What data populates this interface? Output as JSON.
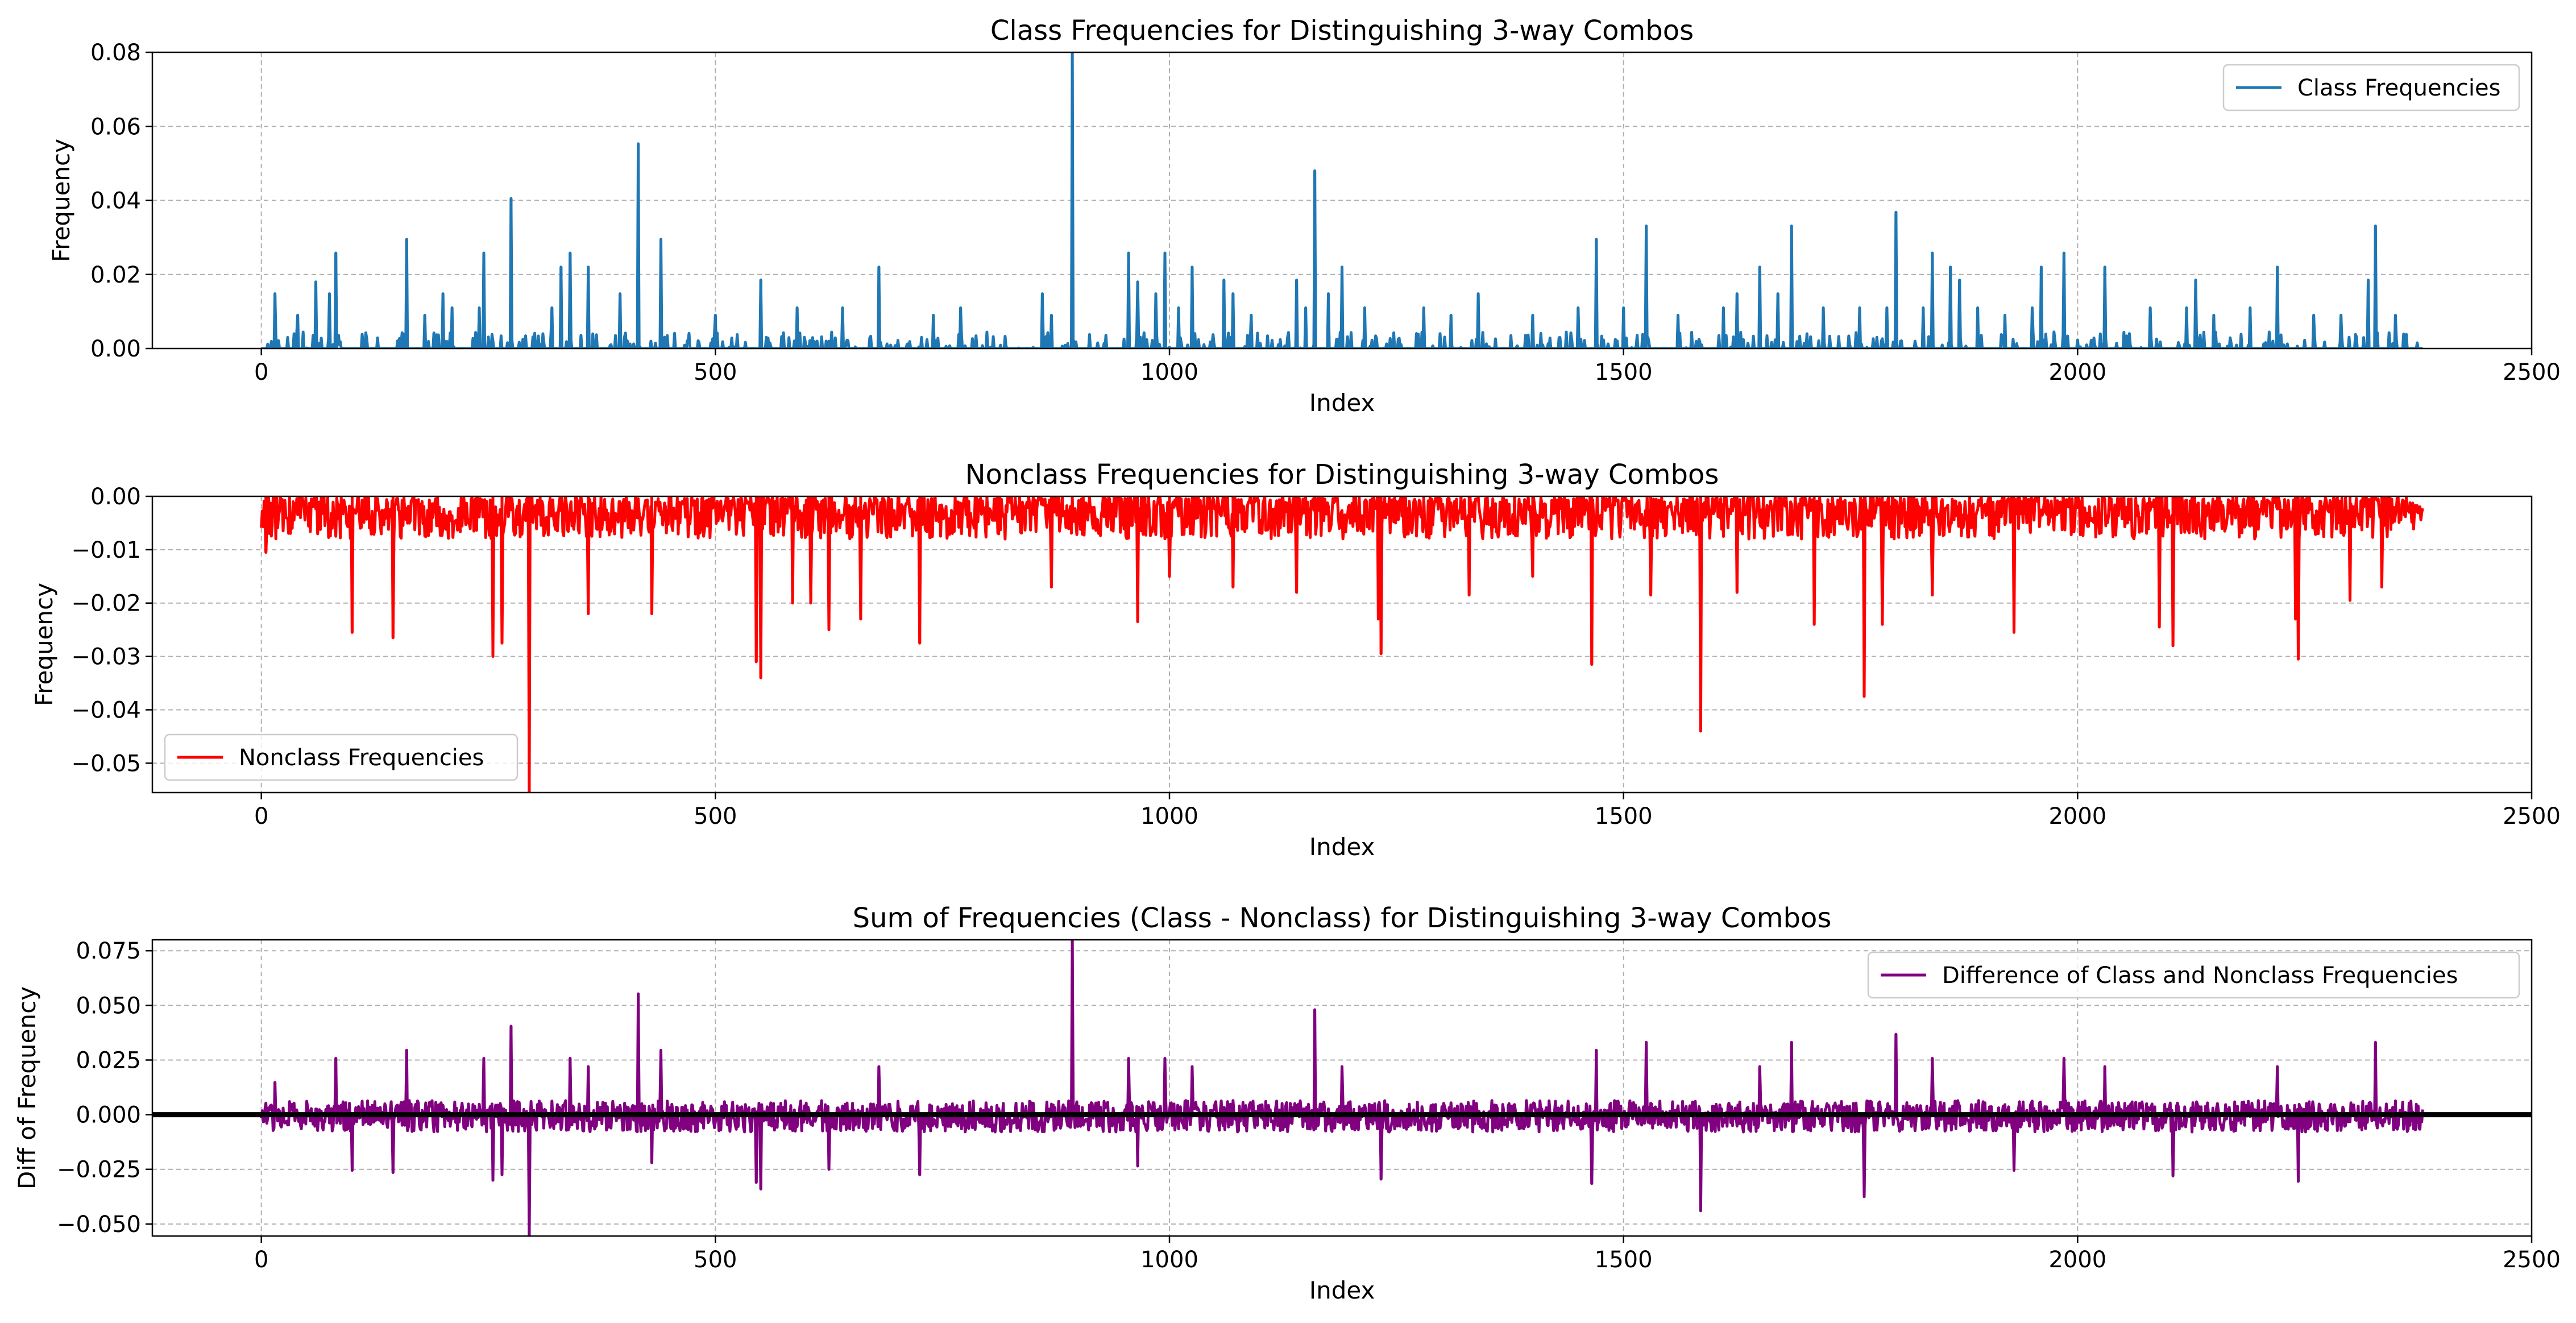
{
  "chart_data": [
    {
      "type": "line",
      "title": "Class Frequencies for Distinguishing 3-way Combos",
      "xlabel": "Index",
      "ylabel": "Frequency",
      "xlim": [
        -120,
        2500
      ],
      "ylim": [
        0,
        0.08
      ],
      "xticks": [
        0,
        500,
        1000,
        1500,
        2000,
        2500
      ],
      "xtick_labels": [
        "0",
        "500",
        "1000",
        "1500",
        "2000",
        "2500"
      ],
      "yticks": [
        0,
        0.02,
        0.04,
        0.06,
        0.08
      ],
      "ytick_labels": [
        "0.00",
        "0.02",
        "0.04",
        "0.06",
        "0.08"
      ],
      "grid": true,
      "legend_position": "upper-right",
      "series": [
        {
          "name": "Class Frequencies",
          "color": "#1f77b4",
          "x_start": 0,
          "x_end": 2380,
          "sign": 1,
          "noise_max": 0.0045,
          "noise_density": 0.4,
          "spikes": [
            [
              15,
              0.0148
            ],
            [
              40,
              0.009
            ],
            [
              60,
              0.018
            ],
            [
              75,
              0.0148
            ],
            [
              82,
              0.0258
            ],
            [
              160,
              0.0295
            ],
            [
              180,
              0.009
            ],
            [
              200,
              0.0148
            ],
            [
              210,
              0.011
            ],
            [
              240,
              0.011
            ],
            [
              245,
              0.0258
            ],
            [
              275,
              0.0405
            ],
            [
              320,
              0.011
            ],
            [
              330,
              0.022
            ],
            [
              340,
              0.0258
            ],
            [
              360,
              0.022
            ],
            [
              395,
              0.0148
            ],
            [
              415,
              0.0553
            ],
            [
              440,
              0.0295
            ],
            [
              500,
              0.009
            ],
            [
              550,
              0.0185
            ],
            [
              590,
              0.011
            ],
            [
              640,
              0.011
            ],
            [
              680,
              0.022
            ],
            [
              740,
              0.009
            ],
            [
              770,
              0.011
            ],
            [
              860,
              0.0148
            ],
            [
              870,
              0.009
            ],
            [
              893,
              0.08
            ],
            [
              955,
              0.0258
            ],
            [
              965,
              0.018
            ],
            [
              985,
              0.0148
            ],
            [
              995,
              0.0258
            ],
            [
              1010,
              0.011
            ],
            [
              1025,
              0.022
            ],
            [
              1060,
              0.0185
            ],
            [
              1070,
              0.0148
            ],
            [
              1090,
              0.009
            ],
            [
              1140,
              0.0185
            ],
            [
              1150,
              0.011
            ],
            [
              1160,
              0.048
            ],
            [
              1175,
              0.0148
            ],
            [
              1190,
              0.022
            ],
            [
              1215,
              0.011
            ],
            [
              1280,
              0.011
            ],
            [
              1310,
              0.009
            ],
            [
              1340,
              0.0148
            ],
            [
              1400,
              0.009
            ],
            [
              1450,
              0.011
            ],
            [
              1470,
              0.0295
            ],
            [
              1500,
              0.011
            ],
            [
              1525,
              0.0331
            ],
            [
              1560,
              0.009
            ],
            [
              1610,
              0.011
            ],
            [
              1625,
              0.0148
            ],
            [
              1650,
              0.022
            ],
            [
              1670,
              0.0148
            ],
            [
              1685,
              0.0331
            ],
            [
              1720,
              0.011
            ],
            [
              1760,
              0.011
            ],
            [
              1790,
              0.011
            ],
            [
              1800,
              0.0368
            ],
            [
              1830,
              0.011
            ],
            [
              1840,
              0.0258
            ],
            [
              1860,
              0.022
            ],
            [
              1870,
              0.0185
            ],
            [
              1890,
              0.011
            ],
            [
              1920,
              0.009
            ],
            [
              1950,
              0.011
            ],
            [
              1960,
              0.022
            ],
            [
              1985,
              0.0258
            ],
            [
              2030,
              0.022
            ],
            [
              2080,
              0.011
            ],
            [
              2120,
              0.011
            ],
            [
              2130,
              0.0185
            ],
            [
              2150,
              0.009
            ],
            [
              2190,
              0.011
            ],
            [
              2220,
              0.022
            ],
            [
              2260,
              0.009
            ],
            [
              2290,
              0.009
            ],
            [
              2320,
              0.0185
            ],
            [
              2328,
              0.0331
            ],
            [
              2350,
              0.009
            ]
          ]
        }
      ]
    },
    {
      "type": "line",
      "title": "Nonclass Frequencies for Distinguishing 3-way Combos",
      "xlabel": "Index",
      "ylabel": "Frequency",
      "xlim": [
        -120,
        2500
      ],
      "ylim": [
        -0.0555,
        0
      ],
      "xticks": [
        0,
        500,
        1000,
        1500,
        2000,
        2500
      ],
      "xtick_labels": [
        "0",
        "500",
        "1000",
        "1500",
        "2000",
        "2500"
      ],
      "yticks": [
        -0.05,
        -0.04,
        -0.03,
        -0.02,
        -0.01,
        0
      ],
      "ytick_labels": [
        "−0.05",
        "−0.04",
        "−0.03",
        "−0.02",
        "−0.01",
        "0.00"
      ],
      "grid": true,
      "legend_position": "lower-left",
      "series": [
        {
          "name": "Nonclass Frequencies",
          "color": "#ff0000",
          "x_start": 0,
          "x_end": 2380,
          "sign": -1,
          "noise_max": 0.008,
          "noise_density": 1.0,
          "spikes": [
            [
              5,
              -0.0105
            ],
            [
              100,
              -0.0255
            ],
            [
              145,
              -0.0265
            ],
            [
              255,
              -0.03
            ],
            [
              265,
              -0.0275
            ],
            [
              295,
              -0.0555
            ],
            [
              360,
              -0.022
            ],
            [
              430,
              -0.022
            ],
            [
              545,
              -0.031
            ],
            [
              550,
              -0.034
            ],
            [
              585,
              -0.02
            ],
            [
              605,
              -0.02
            ],
            [
              625,
              -0.025
            ],
            [
              660,
              -0.023
            ],
            [
              725,
              -0.0275
            ],
            [
              870,
              -0.017
            ],
            [
              965,
              -0.0235
            ],
            [
              1000,
              -0.015
            ],
            [
              1070,
              -0.017
            ],
            [
              1140,
              -0.018
            ],
            [
              1230,
              -0.023
            ],
            [
              1233,
              -0.0295
            ],
            [
              1330,
              -0.0185
            ],
            [
              1400,
              -0.015
            ],
            [
              1465,
              -0.0315
            ],
            [
              1530,
              -0.0185
            ],
            [
              1585,
              -0.044
            ],
            [
              1625,
              -0.018
            ],
            [
              1710,
              -0.024
            ],
            [
              1765,
              -0.0375
            ],
            [
              1785,
              -0.024
            ],
            [
              1840,
              -0.0185
            ],
            [
              1930,
              -0.0255
            ],
            [
              2090,
              -0.0245
            ],
            [
              2105,
              -0.028
            ],
            [
              2240,
              -0.023
            ],
            [
              2243,
              -0.0305
            ],
            [
              2300,
              -0.0195
            ],
            [
              2335,
              -0.017
            ]
          ]
        }
      ]
    },
    {
      "type": "line",
      "title": "Sum of Frequencies (Class - Nonclass) for Distinguishing 3-way Combos",
      "xlabel": "Index",
      "ylabel": "Diff of Frequency",
      "xlim": [
        -120,
        2500
      ],
      "ylim": [
        -0.0555,
        0.08
      ],
      "xticks": [
        0,
        500,
        1000,
        1500,
        2000,
        2500
      ],
      "xtick_labels": [
        "0",
        "500",
        "1000",
        "1500",
        "2000",
        "2500"
      ],
      "yticks": [
        -0.05,
        -0.025,
        0,
        0.025,
        0.05,
        0.075
      ],
      "ytick_labels": [
        "−0.050",
        "−0.025",
        "0.000",
        "0.025",
        "0.050",
        "0.075"
      ],
      "grid": true,
      "legend_position": "upper-right",
      "zero_line": true,
      "series": [
        {
          "name": "Difference of Class and Nonclass Frequencies",
          "color": "#800080",
          "x_start": 0,
          "x_end": 2380,
          "sign": 0,
          "noise_max": 0.008,
          "noise_density": 1.0,
          "spikes": [
            [
              15,
              0.0148
            ],
            [
              82,
              0.0258
            ],
            [
              100,
              -0.0255
            ],
            [
              145,
              -0.0265
            ],
            [
              160,
              0.0295
            ],
            [
              245,
              0.0258
            ],
            [
              255,
              -0.03
            ],
            [
              265,
              -0.0275
            ],
            [
              275,
              0.0405
            ],
            [
              295,
              -0.0555
            ],
            [
              340,
              0.0258
            ],
            [
              360,
              0.022
            ],
            [
              415,
              0.0553
            ],
            [
              430,
              -0.022
            ],
            [
              440,
              0.0295
            ],
            [
              545,
              -0.031
            ],
            [
              550,
              -0.034
            ],
            [
              625,
              -0.025
            ],
            [
              680,
              0.022
            ],
            [
              725,
              -0.0275
            ],
            [
              893,
              0.08
            ],
            [
              955,
              0.0258
            ],
            [
              965,
              -0.0235
            ],
            [
              995,
              0.0258
            ],
            [
              1025,
              0.022
            ],
            [
              1160,
              0.048
            ],
            [
              1190,
              0.022
            ],
            [
              1233,
              -0.0295
            ],
            [
              1465,
              -0.0315
            ],
            [
              1470,
              0.0295
            ],
            [
              1525,
              0.0331
            ],
            [
              1585,
              -0.044
            ],
            [
              1650,
              0.022
            ],
            [
              1685,
              0.0331
            ],
            [
              1765,
              -0.0375
            ],
            [
              1800,
              0.0368
            ],
            [
              1840,
              0.0258
            ],
            [
              1930,
              -0.0255
            ],
            [
              1985,
              0.0258
            ],
            [
              2030,
              0.022
            ],
            [
              2105,
              -0.028
            ],
            [
              2220,
              0.022
            ],
            [
              2243,
              -0.0305
            ],
            [
              2328,
              0.0331
            ]
          ]
        }
      ]
    }
  ]
}
